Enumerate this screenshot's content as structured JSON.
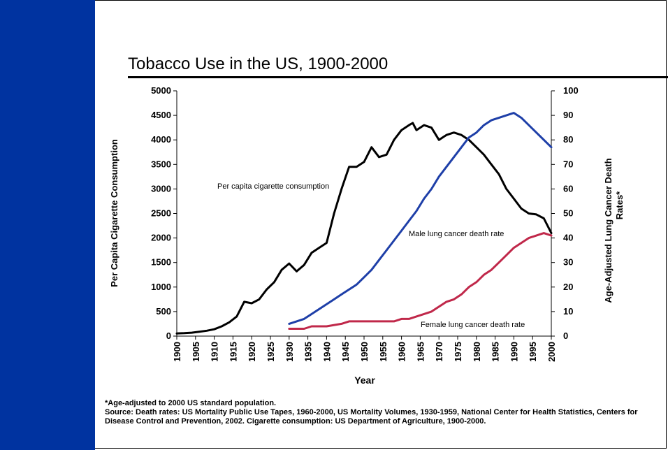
{
  "slide": {
    "title": "Tobacco Use in the US, 1900-2000",
    "accent_color": "#0033A0",
    "footnote": {
      "line1": "*Age-adjusted to 2000 US standard population.",
      "line2": "Source: Death rates: US Mortality Public Use Tapes, 1960-2000, US Mortality Volumes, 1930-1959, National Center for Health Statistics, Centers for Disease Control and Prevention, 2002. Cigarette consumption: US Department of Agriculture, 1900-2000."
    }
  },
  "chart_data": {
    "type": "line",
    "title": "",
    "xlabel": "Year",
    "ylabel_left": "Per Capita Cigarette Consumption",
    "ylabel_right": "Age-Adjusted Lung Cancer Death Rates*",
    "xlim": [
      1900,
      2000
    ],
    "ylim_left": [
      0,
      5000
    ],
    "ylim_right": [
      0,
      100
    ],
    "x_ticks": [
      1900,
      1905,
      1910,
      1915,
      1920,
      1925,
      1930,
      1935,
      1940,
      1945,
      1950,
      1955,
      1960,
      1965,
      1970,
      1975,
      1980,
      1985,
      1990,
      1995,
      2000
    ],
    "y_ticks_left": [
      0,
      500,
      1000,
      1500,
      2000,
      2500,
      3000,
      3500,
      4000,
      4500,
      5000
    ],
    "y_ticks_right": [
      0,
      10,
      20,
      30,
      40,
      50,
      60,
      70,
      80,
      90,
      100
    ],
    "grid": false,
    "series": [
      {
        "name": "Per capita cigarette consumption",
        "axis": "left",
        "color": "#000000",
        "x": [
          1900,
          1902,
          1904,
          1906,
          1908,
          1910,
          1912,
          1914,
          1916,
          1918,
          1920,
          1922,
          1924,
          1926,
          1928,
          1930,
          1932,
          1934,
          1936,
          1938,
          1940,
          1942,
          1944,
          1946,
          1948,
          1950,
          1952,
          1954,
          1956,
          1958,
          1960,
          1962,
          1963,
          1964,
          1966,
          1968,
          1970,
          1972,
          1974,
          1976,
          1978,
          1980,
          1982,
          1984,
          1986,
          1988,
          1990,
          1992,
          1994,
          1996,
          1998,
          2000
        ],
        "y": [
          54,
          60,
          70,
          90,
          110,
          140,
          200,
          280,
          400,
          700,
          670,
          750,
          950,
          1100,
          1350,
          1480,
          1320,
          1450,
          1700,
          1800,
          1900,
          2500,
          3000,
          3450,
          3450,
          3550,
          3850,
          3650,
          3700,
          4000,
          4200,
          4300,
          4345,
          4200,
          4300,
          4250,
          4000,
          4100,
          4150,
          4100,
          4000,
          3850,
          3700,
          3500,
          3300,
          3000,
          2800,
          2600,
          2500,
          2480,
          2400,
          2100
        ]
      },
      {
        "name": "Male lung cancer death rate",
        "axis": "right",
        "color": "#1E3FA8",
        "x": [
          1930,
          1932,
          1934,
          1936,
          1938,
          1940,
          1942,
          1944,
          1946,
          1948,
          1950,
          1952,
          1954,
          1956,
          1958,
          1960,
          1962,
          1964,
          1966,
          1968,
          1970,
          1972,
          1974,
          1976,
          1978,
          1980,
          1982,
          1984,
          1986,
          1988,
          1990,
          1992,
          1994,
          1996,
          1998,
          2000
        ],
        "y": [
          5,
          6,
          7,
          9,
          11,
          13,
          15,
          17,
          19,
          21,
          24,
          27,
          31,
          35,
          39,
          43,
          47,
          51,
          56,
          60,
          65,
          69,
          73,
          77,
          81,
          83,
          86,
          88,
          89,
          90,
          91,
          89,
          86,
          83,
          80,
          77
        ]
      },
      {
        "name": "Female lung cancer death rate",
        "axis": "right",
        "color": "#C0284A",
        "x": [
          1930,
          1934,
          1936,
          1940,
          1944,
          1946,
          1950,
          1954,
          1958,
          1960,
          1962,
          1964,
          1966,
          1968,
          1970,
          1972,
          1974,
          1976,
          1978,
          1980,
          1982,
          1984,
          1986,
          1988,
          1990,
          1992,
          1994,
          1996,
          1998,
          2000
        ],
        "y": [
          3,
          3,
          4,
          4,
          5,
          6,
          6,
          6,
          6,
          7,
          7,
          8,
          9,
          10,
          12,
          14,
          15,
          17,
          20,
          22,
          25,
          27,
          30,
          33,
          36,
          38,
          40,
          41,
          42,
          41
        ]
      }
    ],
    "annotations": [
      {
        "text": "Per capita cigarette consumption",
        "series": 0
      },
      {
        "text": "Male lung cancer death rate",
        "series": 1
      },
      {
        "text": "Female lung cancer death rate",
        "series": 2
      }
    ]
  }
}
